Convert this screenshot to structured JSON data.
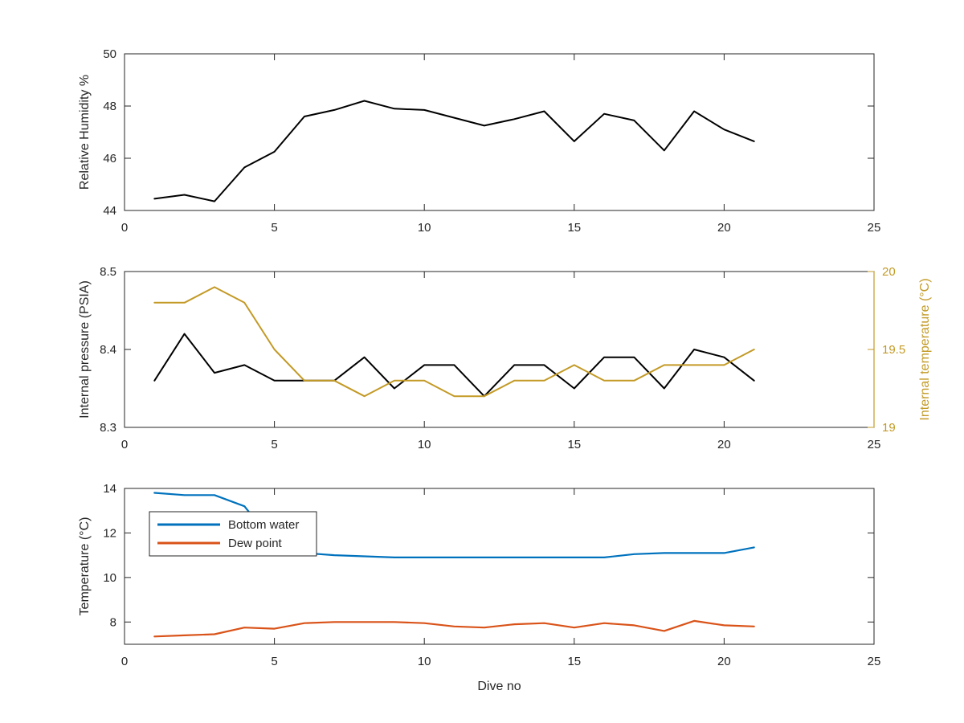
{
  "chart_data": [
    {
      "type": "line",
      "title": "",
      "xlabel": "",
      "ylabel": "Relative Humidity %",
      "xlim": [
        0,
        25
      ],
      "ylim": [
        44,
        50
      ],
      "xticks": [
        0,
        5,
        10,
        15,
        20,
        25
      ],
      "yticks": [
        44,
        46,
        48,
        50
      ],
      "grid": false,
      "series": [
        {
          "color": "#000000",
          "x": [
            1,
            2,
            3,
            4,
            5,
            6,
            7,
            8,
            9,
            10,
            11,
            12,
            13,
            14,
            15,
            16,
            17,
            18,
            19,
            20,
            21
          ],
          "y": [
            44.45,
            44.6,
            44.35,
            45.65,
            46.25,
            47.6,
            47.85,
            48.2,
            47.9,
            47.85,
            47.55,
            47.25,
            47.5,
            47.8,
            46.65,
            47.7,
            47.45,
            46.3,
            47.8,
            47.1,
            46.65
          ]
        }
      ]
    },
    {
      "type": "line",
      "title": "",
      "xlabel": "",
      "ylabel": "Internal pressure (PSIA)",
      "ylabel_right": "Internal temperature (°C)",
      "xlim": [
        0,
        25
      ],
      "ylim": [
        8.3,
        8.5
      ],
      "ylim_right": [
        19,
        20
      ],
      "xticks": [
        0,
        5,
        10,
        15,
        20,
        25
      ],
      "yticks": [
        8.3,
        8.4,
        8.5
      ],
      "yticks_right": [
        19,
        19.5,
        20
      ],
      "right_axis_color": "#c39a26",
      "grid": false,
      "series": [
        {
          "axis": "left",
          "color": "#000000",
          "x": [
            1,
            2,
            3,
            4,
            5,
            6,
            7,
            8,
            9,
            10,
            11,
            12,
            13,
            14,
            15,
            16,
            17,
            18,
            19,
            20,
            21
          ],
          "y": [
            8.36,
            8.42,
            8.37,
            8.38,
            8.36,
            8.36,
            8.36,
            8.39,
            8.35,
            8.38,
            8.38,
            8.34,
            8.38,
            8.38,
            8.35,
            8.39,
            8.39,
            8.35,
            8.4,
            8.39,
            8.36
          ]
        },
        {
          "axis": "right",
          "color": "#c39a26",
          "x": [
            1,
            2,
            3,
            4,
            5,
            6,
            7,
            8,
            9,
            10,
            11,
            12,
            13,
            14,
            15,
            16,
            17,
            18,
            19,
            20,
            21
          ],
          "y": [
            19.8,
            19.8,
            19.9,
            19.8,
            19.5,
            19.3,
            19.3,
            19.2,
            19.3,
            19.3,
            19.2,
            19.2,
            19.3,
            19.3,
            19.4,
            19.3,
            19.3,
            19.4,
            19.4,
            19.4,
            19.5
          ]
        }
      ]
    },
    {
      "type": "line",
      "title": "",
      "xlabel": "Dive no",
      "ylabel": "Temperature (°C)",
      "xlim": [
        0,
        25
      ],
      "ylim": [
        7,
        14
      ],
      "xticks": [
        0,
        5,
        10,
        15,
        20,
        25
      ],
      "yticks": [
        8,
        10,
        12,
        14
      ],
      "grid": false,
      "legend": {
        "placement": "top-left",
        "entries": [
          "Bottom water",
          "Dew point"
        ]
      },
      "series": [
        {
          "name": "Bottom water",
          "color": "#0072bd",
          "x": [
            1,
            2,
            3,
            4,
            5,
            6,
            7,
            8,
            9,
            10,
            11,
            12,
            13,
            14,
            15,
            16,
            17,
            18,
            19,
            20,
            21
          ],
          "y": [
            13.8,
            13.7,
            13.7,
            13.2,
            11.5,
            11.1,
            11,
            10.95,
            10.9,
            10.9,
            10.9,
            10.9,
            10.9,
            10.9,
            10.9,
            10.9,
            11.05,
            11.1,
            11.1,
            11.1,
            11.35
          ]
        },
        {
          "name": "Dew point",
          "color": "#d95319",
          "x": [
            1,
            2,
            3,
            4,
            5,
            6,
            7,
            8,
            9,
            10,
            11,
            12,
            13,
            14,
            15,
            16,
            17,
            18,
            19,
            20,
            21
          ],
          "y": [
            7.35,
            7.4,
            7.45,
            7.75,
            7.7,
            7.95,
            8,
            8,
            8,
            7.95,
            7.8,
            7.75,
            7.9,
            7.95,
            7.75,
            7.95,
            7.85,
            7.6,
            8.05,
            7.85,
            7.8
          ]
        }
      ]
    }
  ]
}
